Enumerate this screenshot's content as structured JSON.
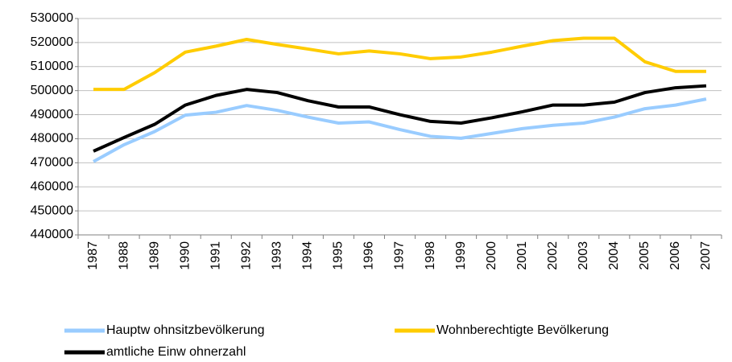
{
  "chart_data": {
    "type": "line",
    "categories": [
      "1987",
      "1988",
      "1989",
      "1990",
      "1991",
      "1992",
      "1993",
      "1994",
      "1995",
      "1996",
      "1997",
      "1998",
      "1999",
      "2000",
      "2001",
      "2002",
      "2003",
      "2004",
      "2005",
      "2006",
      "2007"
    ],
    "series": [
      {
        "name": "Hauptw ohnsitzbevölkerung",
        "color": "#99ccff",
        "values": [
          470500,
          477500,
          483000,
          489800,
          491000,
          493800,
          491800,
          489000,
          486500,
          487000,
          483800,
          481000,
          480200,
          482200,
          484200,
          485600,
          486500,
          489000,
          492500,
          494000,
          496500
        ]
      },
      {
        "name": "Wohnberechtigte Bevölkerung",
        "color": "#ffcc00",
        "values": [
          500500,
          500500,
          507500,
          516000,
          518500,
          521300,
          519200,
          517300,
          515300,
          516500,
          515300,
          513300,
          514000,
          516000,
          518500,
          520800,
          521800,
          521800,
          512000,
          508000,
          508000
        ]
      },
      {
        "name": "amtliche Einw ohnerzahl",
        "color": "#000000",
        "values": [
          474800,
          480500,
          486000,
          494000,
          498000,
          500500,
          499200,
          495800,
          493200,
          493200,
          490000,
          487200,
          486500,
          488700,
          491200,
          494000,
          494000,
          495200,
          499200,
          501200,
          502000
        ]
      }
    ],
    "ylim": [
      440000,
      530000
    ],
    "yticks": [
      440000,
      450000,
      460000,
      470000,
      480000,
      490000,
      500000,
      510000,
      520000,
      530000
    ],
    "grid": true,
    "legend": "bottom"
  }
}
